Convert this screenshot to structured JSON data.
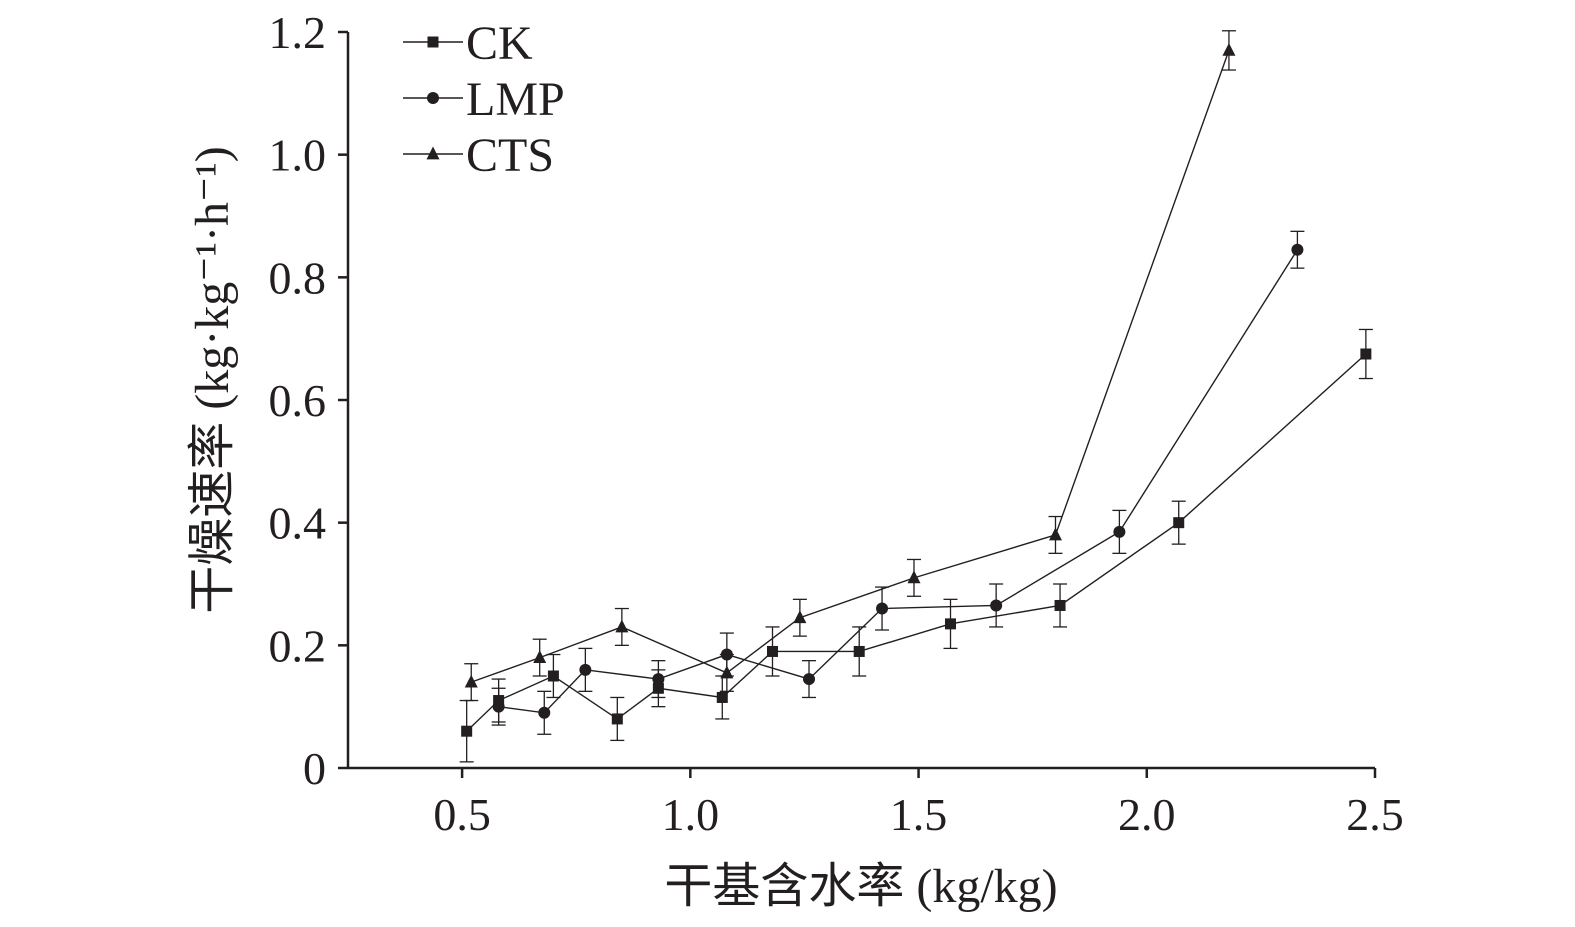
{
  "chart_data": {
    "type": "line",
    "xlabel": "干基含水率 (kg/kg)",
    "ylabel": "干燥速率 (kg·kg⁻¹·h⁻¹)",
    "xlim": [
      0.25,
      2.5
    ],
    "ylim": [
      0,
      1.2
    ],
    "xticks": [
      0.5,
      1.0,
      1.5,
      2.0,
      2.5
    ],
    "xtick_labels": [
      "0.5",
      "1.0",
      "1.5",
      "2.0",
      "2.5"
    ],
    "yticks": [
      0,
      0.2,
      0.4,
      0.6,
      0.8,
      1.0,
      1.2
    ],
    "ytick_labels": [
      "0",
      "0.2",
      "0.4",
      "0.6",
      "0.8",
      "1.0",
      "1.2"
    ],
    "grid": false,
    "legend_position": "top-left",
    "series": [
      {
        "name": "CK",
        "marker": "square",
        "x": [
          0.51,
          0.58,
          0.7,
          0.84,
          0.93,
          1.07,
          1.18,
          1.37,
          1.57,
          1.81,
          2.07,
          2.48
        ],
        "y": [
          0.06,
          0.11,
          0.15,
          0.08,
          0.13,
          0.115,
          0.19,
          0.19,
          0.235,
          0.265,
          0.4,
          0.675
        ],
        "err": [
          0.05,
          0.035,
          0.035,
          0.035,
          0.03,
          0.035,
          0.04,
          0.04,
          0.04,
          0.035,
          0.035,
          0.04
        ]
      },
      {
        "name": "LMP",
        "marker": "circle",
        "x": [
          0.58,
          0.68,
          0.77,
          0.93,
          1.08,
          1.26,
          1.42,
          1.67,
          1.94,
          2.33
        ],
        "y": [
          0.1,
          0.09,
          0.16,
          0.145,
          0.185,
          0.145,
          0.26,
          0.265,
          0.385,
          0.845
        ],
        "err": [
          0.03,
          0.035,
          0.035,
          0.03,
          0.035,
          0.03,
          0.035,
          0.035,
          0.035,
          0.03
        ]
      },
      {
        "name": "CTS",
        "marker": "triangle",
        "x": [
          0.52,
          0.67,
          0.85,
          1.08,
          1.24,
          1.49,
          1.8,
          2.18
        ],
        "y": [
          0.14,
          0.18,
          0.23,
          0.155,
          0.245,
          0.31,
          0.38,
          1.17
        ],
        "err": [
          0.03,
          0.03,
          0.03,
          0.03,
          0.03,
          0.03,
          0.03,
          0.032
        ]
      }
    ]
  },
  "colors": {
    "ink": "#231f20",
    "background": "#ffffff"
  }
}
